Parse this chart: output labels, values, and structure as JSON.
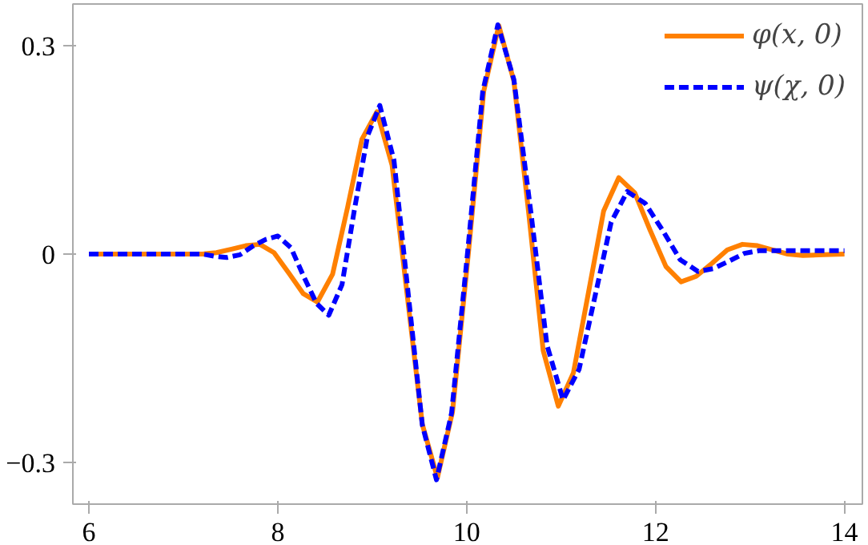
{
  "chart_data": {
    "type": "line",
    "xlim": [
      5.83,
      14.19
    ],
    "ylim": [
      -0.36,
      0.36
    ],
    "xticks": [
      6,
      8,
      10,
      12,
      14
    ],
    "yticks": [
      {
        "value": -0.3,
        "label": "−0.3"
      },
      0,
      0.3
    ],
    "grid": false,
    "legend": "top right",
    "marker": "none",
    "series": [
      {
        "name": "φ(x, 0)",
        "color": "#ff8000",
        "line_style": "solid",
        "x": [
          6,
          7.2,
          7.35,
          7.51,
          7.66,
          7.81,
          7.96,
          8.12,
          8.27,
          8.42,
          8.58,
          8.74,
          8.89,
          9.05,
          9.21,
          9.37,
          9.53,
          9.69,
          9.85,
          10.02,
          10.18,
          10.34,
          10.5,
          10.66,
          10.81,
          10.97,
          11.13,
          11.29,
          11.45,
          11.61,
          11.78,
          11.94,
          12.11,
          12.27,
          12.43,
          12.6,
          12.76,
          12.92,
          13.08,
          13.24,
          13.4,
          13.56,
          13.78,
          14
        ],
        "values": [
          0,
          0,
          0.002,
          0.007,
          0.012,
          0.014,
          0.002,
          -0.028,
          -0.057,
          -0.069,
          -0.029,
          0.068,
          0.165,
          0.205,
          0.128,
          -0.059,
          -0.245,
          -0.322,
          -0.227,
          0.004,
          0.234,
          0.329,
          0.249,
          0.055,
          -0.139,
          -0.219,
          -0.171,
          -0.055,
          0.062,
          0.11,
          0.088,
          0.035,
          -0.018,
          -0.04,
          -0.032,
          -0.013,
          0.006,
          0.014,
          0.012,
          0.006,
          0,
          -0.002,
          -0.001,
          0
        ]
      },
      {
        "name": "ψ(χ, 0)",
        "color": "#0000ff",
        "line_style": "dashed",
        "x": [
          6,
          7.2,
          7.33,
          7.46,
          7.6,
          7.73,
          7.87,
          8.0,
          8.14,
          8.27,
          8.41,
          8.54,
          8.68,
          8.81,
          8.95,
          9.08,
          9.23,
          9.38,
          9.53,
          9.68,
          9.84,
          10.01,
          10.17,
          10.33,
          10.5,
          10.68,
          10.85,
          11.02,
          11.19,
          11.36,
          11.53,
          11.7,
          11.89,
          12.08,
          12.26,
          12.45,
          12.61,
          12.78,
          12.94,
          13.1,
          13.5,
          14
        ],
        "values": [
          0,
          0,
          -0.003,
          -0.005,
          -0.001,
          0.011,
          0.021,
          0.026,
          0.009,
          -0.031,
          -0.071,
          -0.088,
          -0.044,
          0.063,
          0.17,
          0.214,
          0.135,
          -0.056,
          -0.246,
          -0.325,
          -0.229,
          0.003,
          0.234,
          0.33,
          0.251,
          0.06,
          -0.131,
          -0.21,
          -0.166,
          -0.06,
          0.046,
          0.09,
          0.073,
          0.033,
          -0.008,
          -0.025,
          -0.021,
          -0.01,
          0.001,
          0.005,
          0.005,
          0.005
        ]
      }
    ]
  }
}
